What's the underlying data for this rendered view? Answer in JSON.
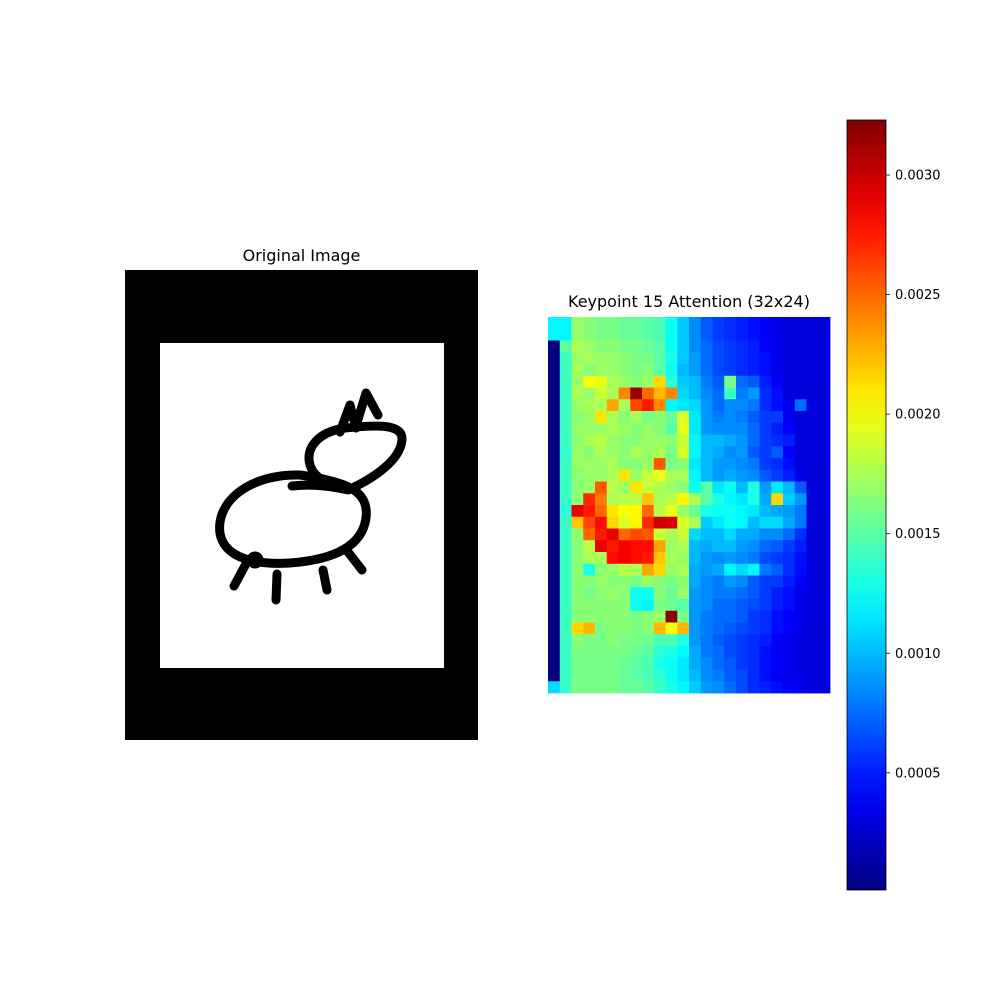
{
  "panels": {
    "left_title": "Original Image",
    "right_title": "Keypoint 15 Attention (32x24)"
  },
  "chart_data": {
    "type": "heatmap",
    "title": "Keypoint 15 Attention (32x24)",
    "rows": 32,
    "cols": 24,
    "colormap": "jet",
    "vmin": 1e-05,
    "vmax": 0.00323,
    "colorbar": {
      "position": "right",
      "ticks": [
        0.0005,
        0.001,
        0.0015,
        0.002,
        0.0025,
        0.003
      ],
      "tick_labels": [
        "0.0005",
        "0.0010",
        "0.0015",
        "0.0020",
        "0.0025",
        "0.0030"
      ]
    },
    "grid": false,
    "values": [
      [
        0.0012,
        0.0012,
        0.0017,
        0.00165,
        0.0016,
        0.0016,
        0.00155,
        0.00155,
        0.0015,
        0.00145,
        0.00125,
        0.00105,
        0.00085,
        0.0007,
        0.0006,
        0.00055,
        0.0005,
        0.00045,
        0.0004,
        0.00035,
        0.0003,
        0.0003,
        0.0003,
        0.0003
      ],
      [
        0.0012,
        0.0012,
        0.0017,
        0.00165,
        0.0016,
        0.0016,
        0.00155,
        0.00155,
        0.0015,
        0.00145,
        0.00125,
        0.00105,
        0.00085,
        0.0007,
        0.0006,
        0.00055,
        0.0005,
        0.00045,
        0.0004,
        0.00035,
        0.0003,
        0.0003,
        0.0003,
        0.0003
      ],
      [
        1e-05,
        0.0015,
        0.00175,
        0.0017,
        0.00165,
        0.00165,
        0.0016,
        0.0016,
        0.00155,
        0.0015,
        0.00125,
        0.00105,
        0.00085,
        0.00075,
        0.00065,
        0.0006,
        0.00055,
        0.0005,
        0.0004,
        0.00035,
        0.0003,
        0.0003,
        0.0003,
        0.0003
      ],
      [
        1e-05,
        0.0014,
        0.0017,
        0.00175,
        0.0017,
        0.0017,
        0.00165,
        0.0016,
        0.0016,
        0.0015,
        0.0013,
        0.00105,
        0.0009,
        0.00075,
        0.00065,
        0.0006,
        0.00055,
        0.0005,
        0.00045,
        0.00035,
        0.0003,
        0.0003,
        0.0003,
        0.0003
      ],
      [
        1e-05,
        0.0014,
        0.00175,
        0.00165,
        0.0017,
        0.0017,
        0.00165,
        0.0016,
        0.00165,
        0.0015,
        0.00125,
        0.001,
        0.0009,
        0.00075,
        0.00065,
        0.0006,
        0.00055,
        0.0005,
        0.00045,
        0.00035,
        0.0003,
        0.0003,
        0.0003,
        0.0003
      ],
      [
        1e-05,
        0.0014,
        0.0017,
        0.002,
        0.00195,
        0.00175,
        0.0017,
        0.00165,
        0.0017,
        0.00215,
        0.00135,
        0.00105,
        0.001,
        0.0008,
        0.0007,
        0.0016,
        0.00075,
        0.0007,
        0.0005,
        0.0004,
        0.0003,
        0.0003,
        0.0003,
        0.0003
      ],
      [
        1e-05,
        0.0014,
        0.00175,
        0.0017,
        0.00185,
        0.00175,
        0.0024,
        0.00315,
        0.0025,
        0.00225,
        0.0024,
        0.0011,
        0.001,
        0.00085,
        0.00075,
        0.0014,
        0.0008,
        0.0009,
        0.00055,
        0.00045,
        0.0003,
        0.0003,
        0.0003,
        0.0003
      ],
      [
        1e-05,
        0.0014,
        0.0017,
        0.00175,
        0.00175,
        0.0023,
        0.00175,
        0.0026,
        0.00275,
        0.0024,
        0.0012,
        0.00115,
        0.0011,
        0.0009,
        0.00075,
        0.00085,
        0.00085,
        0.0008,
        0.00055,
        0.00045,
        0.00035,
        0.00075,
        0.0003,
        0.0003
      ],
      [
        1e-05,
        0.0014,
        0.00165,
        0.0017,
        0.0021,
        0.00175,
        0.00165,
        0.00175,
        0.0016,
        0.00165,
        0.00155,
        0.0019,
        0.00115,
        0.0009,
        0.0008,
        0.00085,
        0.0008,
        0.0007,
        0.0006,
        0.0006,
        0.00035,
        0.0003,
        0.0003,
        0.0003
      ],
      [
        1e-05,
        0.0014,
        0.0017,
        0.0017,
        0.0017,
        0.00175,
        0.0017,
        0.00165,
        0.0017,
        0.00165,
        0.0015,
        0.00195,
        0.00115,
        0.0009,
        0.00085,
        0.00085,
        0.00085,
        0.00075,
        0.0006,
        0.0005,
        0.0004,
        0.0003,
        0.0003,
        0.0003
      ],
      [
        1e-05,
        0.0014,
        0.00165,
        0.00175,
        0.0018,
        0.0017,
        0.00165,
        0.00165,
        0.0017,
        0.0017,
        0.00165,
        0.00185,
        0.0012,
        0.001,
        0.001,
        0.00095,
        0.0009,
        0.00075,
        0.0006,
        0.00055,
        0.0005,
        0.0003,
        0.0003,
        0.0003
      ],
      [
        1e-05,
        0.00135,
        0.0017,
        0.00165,
        0.00175,
        0.0017,
        0.00165,
        0.00175,
        0.0017,
        0.00175,
        0.0016,
        0.0019,
        0.0012,
        0.001,
        0.00095,
        0.00085,
        0.0009,
        0.0007,
        0.0006,
        0.0007,
        0.0004,
        0.0003,
        0.0003,
        0.0003
      ],
      [
        1e-05,
        0.0014,
        0.0017,
        0.0017,
        0.0017,
        0.00175,
        0.00165,
        0.00165,
        0.0017,
        0.00255,
        0.0016,
        0.00165,
        0.00115,
        0.001,
        0.0009,
        0.0009,
        0.00085,
        0.0008,
        0.0006,
        0.00055,
        0.00045,
        0.0003,
        0.0003,
        0.0003
      ],
      [
        1e-05,
        0.0014,
        0.00165,
        0.0017,
        0.0017,
        0.00175,
        0.0021,
        0.0017,
        0.00185,
        0.00195,
        0.00175,
        0.00175,
        0.0012,
        0.001,
        0.0009,
        0.00095,
        0.0009,
        0.00085,
        0.0007,
        0.0006,
        0.0005,
        0.00035,
        0.0003,
        0.0003
      ],
      [
        1e-05,
        0.0014,
        0.00165,
        0.0017,
        0.00255,
        0.0018,
        0.0017,
        0.0021,
        0.00185,
        0.00175,
        0.0017,
        0.00165,
        0.00125,
        0.0015,
        0.00115,
        0.00125,
        0.001,
        0.0013,
        0.0009,
        0.00115,
        0.001,
        0.0007,
        0.0003,
        0.0003
      ],
      [
        1e-05,
        0.0014,
        0.00165,
        0.0027,
        0.00245,
        0.00175,
        0.0018,
        0.0018,
        0.0022,
        0.00175,
        0.0018,
        0.00205,
        0.00175,
        0.0015,
        0.0013,
        0.0012,
        0.00115,
        0.0013,
        0.00095,
        0.00215,
        0.00105,
        0.0009,
        0.0003,
        0.0003
      ],
      [
        1e-05,
        0.00135,
        0.0029,
        0.00275,
        0.0025,
        0.0021,
        0.002,
        0.00205,
        0.0025,
        0.0018,
        0.00195,
        0.0017,
        0.00155,
        0.0013,
        0.00125,
        0.00125,
        0.0012,
        0.00115,
        0.001,
        0.00095,
        0.0009,
        0.0008,
        0.0003,
        0.0003
      ],
      [
        1e-05,
        0.0014,
        0.0022,
        0.0026,
        0.0028,
        0.00215,
        0.0019,
        0.00205,
        0.0027,
        0.003,
        0.00295,
        0.0019,
        0.00175,
        0.00105,
        0.00115,
        0.00125,
        0.0012,
        0.001,
        0.0011,
        0.0011,
        0.00095,
        0.0008,
        0.0003,
        0.0003
      ],
      [
        1e-05,
        0.0014,
        0.00165,
        0.0025,
        0.00275,
        0.0029,
        0.0025,
        0.0026,
        0.00255,
        0.00185,
        0.00175,
        0.00185,
        0.0011,
        0.001,
        0.001,
        0.0011,
        0.00095,
        0.00095,
        0.00085,
        0.00085,
        0.00075,
        0.00055,
        0.0003,
        0.0003
      ],
      [
        1e-05,
        0.0014,
        0.00165,
        0.0018,
        0.0029,
        0.00275,
        0.00285,
        0.0028,
        0.0028,
        0.0023,
        0.0017,
        0.00175,
        0.001,
        0.00095,
        0.001,
        0.001,
        0.0009,
        0.00085,
        0.00075,
        0.0007,
        0.0006,
        0.0005,
        0.0003,
        0.0003
      ],
      [
        1e-05,
        0.0014,
        0.00165,
        0.00175,
        0.00175,
        0.0028,
        0.00285,
        0.0028,
        0.00275,
        0.0022,
        0.00175,
        0.0017,
        0.001,
        0.0009,
        0.00085,
        0.0009,
        0.00085,
        0.0008,
        0.00065,
        0.0006,
        0.00055,
        0.00045,
        0.0003,
        0.0003
      ],
      [
        1e-05,
        0.0014,
        0.00165,
        0.0013,
        0.00165,
        0.0017,
        0.0018,
        0.00175,
        0.0023,
        0.00215,
        0.0017,
        0.00175,
        0.00095,
        0.0009,
        0.00095,
        0.0012,
        0.0011,
        0.0012,
        0.0008,
        0.0007,
        0.00055,
        0.00045,
        0.0003,
        0.0003
      ],
      [
        1e-05,
        0.0014,
        0.00165,
        0.00165,
        0.0017,
        0.00165,
        0.00165,
        0.0016,
        0.0017,
        0.00165,
        0.0016,
        0.00165,
        0.00095,
        0.00085,
        0.0008,
        0.0009,
        0.00085,
        0.0007,
        0.0006,
        0.0006,
        0.0005,
        0.0004,
        0.0003,
        0.0003
      ],
      [
        1e-05,
        0.0014,
        0.00165,
        0.0016,
        0.00165,
        0.0017,
        0.00165,
        0.00125,
        0.00125,
        0.00165,
        0.00155,
        0.0017,
        0.0009,
        0.00085,
        0.0008,
        0.0008,
        0.00075,
        0.0007,
        0.0006,
        0.0005,
        0.00045,
        0.00035,
        0.0003,
        0.0003
      ],
      [
        1e-05,
        0.0014,
        0.00165,
        0.00165,
        0.00165,
        0.00165,
        0.00165,
        0.00125,
        0.0012,
        0.0016,
        0.00155,
        0.0015,
        0.0009,
        0.00085,
        0.00075,
        0.00075,
        0.0007,
        0.00065,
        0.0006,
        0.0005,
        0.00045,
        0.00035,
        0.0003,
        0.0003
      ],
      [
        1e-05,
        0.0014,
        0.00165,
        0.00165,
        0.00165,
        0.00165,
        0.00165,
        0.0016,
        0.00165,
        0.0017,
        0.0032,
        0.0016,
        0.0009,
        0.0008,
        0.00075,
        0.00075,
        0.0007,
        0.0006,
        0.00055,
        0.00045,
        0.0004,
        0.00035,
        0.0003,
        0.0003
      ],
      [
        1e-05,
        0.0014,
        0.00215,
        0.00225,
        0.0016,
        0.00165,
        0.00165,
        0.0016,
        0.00165,
        0.00225,
        0.002,
        0.00225,
        0.0009,
        0.0008,
        0.00075,
        0.0007,
        0.00065,
        0.0006,
        0.00055,
        0.00045,
        0.0004,
        0.00035,
        0.0003,
        0.0003
      ],
      [
        1e-05,
        0.0014,
        0.00165,
        0.0016,
        0.0016,
        0.00165,
        0.0016,
        0.0016,
        0.00155,
        0.00145,
        0.00145,
        0.0013,
        0.0009,
        0.0008,
        0.0007,
        0.00065,
        0.0006,
        0.00055,
        0.0005,
        0.0004,
        0.00035,
        0.0003,
        0.0003,
        0.0003
      ],
      [
        1e-05,
        0.0014,
        0.0016,
        0.0016,
        0.0016,
        0.0016,
        0.0016,
        0.00155,
        0.0015,
        0.00135,
        0.0013,
        0.0012,
        0.00095,
        0.0008,
        0.00075,
        0.00065,
        0.0006,
        0.00055,
        0.00045,
        0.0004,
        0.00035,
        0.0003,
        0.0003,
        0.0003
      ],
      [
        1e-05,
        0.0014,
        0.0016,
        0.0016,
        0.0016,
        0.0016,
        0.00155,
        0.0015,
        0.00145,
        0.0013,
        0.00125,
        0.00115,
        0.00095,
        0.00085,
        0.00075,
        0.0007,
        0.0006,
        0.00055,
        0.00045,
        0.0004,
        0.00035,
        0.0003,
        0.0003,
        0.0003
      ],
      [
        1e-05,
        0.0014,
        0.0016,
        0.0016,
        0.0016,
        0.0016,
        0.00155,
        0.0015,
        0.00145,
        0.00135,
        0.00125,
        0.00115,
        0.001,
        0.00085,
        0.0008,
        0.0007,
        0.00065,
        0.00055,
        0.00045,
        0.0004,
        0.00035,
        0.00035,
        0.0003,
        0.0003
      ],
      [
        0.0011,
        0.0014,
        0.0016,
        0.0016,
        0.0016,
        0.0016,
        0.00155,
        0.00155,
        0.0015,
        0.0014,
        0.0013,
        0.0012,
        0.00105,
        0.0009,
        0.00085,
        0.00075,
        0.00065,
        0.00055,
        0.0005,
        0.00045,
        0.0004,
        0.00035,
        0.0003,
        0.0003
      ]
    ]
  }
}
